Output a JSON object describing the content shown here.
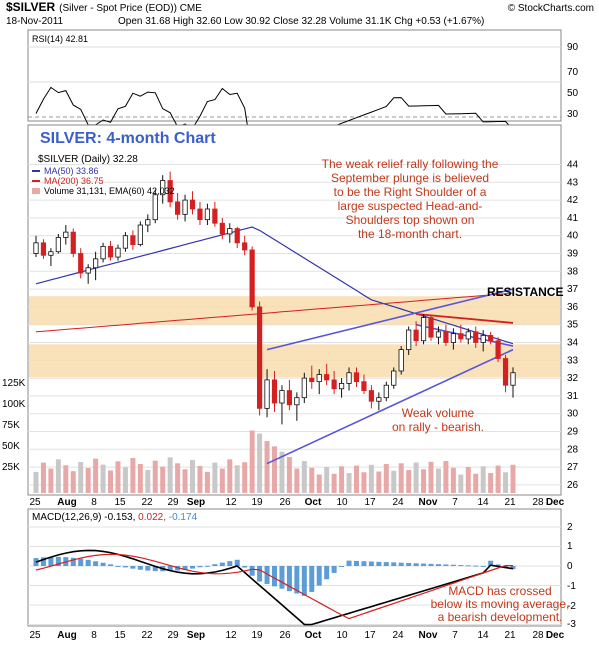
{
  "header": {
    "symbol": "$SILVER",
    "description": "(Silver - Spot Price (EOD)) CME",
    "source": "© StockCharts.com",
    "date": "18-Nov-2011",
    "ohlc": "Open 31.68  High 32.60  Low 30.92  Close 32.28  Volume 31.1K  Chg +0.53 (+1.67%)",
    "up_arrow": "▲"
  },
  "colors": {
    "up": "#111111",
    "down": "#d42020",
    "ma50": "#3333aa",
    "ma200": "#d42020",
    "band": "#f8d9a8",
    "trend": "#5555dd",
    "annotation": "#c0391b",
    "macd_hist": "#3f8bd0",
    "volume": "#e8a8a8"
  },
  "rsi_panel": {
    "legend": "RSI(14) 42.81",
    "levels": [
      "90",
      "70",
      "50",
      "30"
    ]
  },
  "price_panel": {
    "chart_title": "SILVER: 4-month Chart",
    "legend_price": "$SILVER (Daily) 32.28",
    "legend_ma50": "MA(50) 33.86",
    "legend_ma200": "MA(200) 36.75",
    "legend_volume": "Volume 31,131, EMA(60) 42,032",
    "resistance_label": "RESISTANCE",
    "annotation_top": [
      "The weak relief rally following the",
      "September plunge is believed",
      "to be the Right Shoulder of a",
      "large suspected Head-and-",
      "Shoulders top shown on",
      "the 18-month chart."
    ],
    "annotation_volume": [
      "Weak volume",
      "on rally - bearish."
    ],
    "y_ticks": [
      "44",
      "43",
      "42",
      "41",
      "40",
      "39",
      "38",
      "37",
      "36",
      "35",
      "34",
      "33",
      "32",
      "31",
      "30",
      "29",
      "28",
      "27",
      "26"
    ],
    "volume_ticks": [
      "125K",
      "100K",
      "75K",
      "50K",
      "25K"
    ]
  },
  "macd_panel": {
    "legend_name": "MACD(12,26,9)",
    "legend_v1": "-0.153,",
    "legend_v2": "0.022,",
    "legend_v3": "-0.174",
    "annotation": [
      "MACD has crossed",
      "below its moving average,",
      "a bearish development."
    ],
    "y_ticks": [
      "2",
      "1",
      "0",
      "-1",
      "-2",
      "-3"
    ]
  },
  "x_axis": {
    "labels": [
      "25",
      "Aug",
      "8",
      "15",
      "22",
      "29",
      "Sep",
      "12",
      "19",
      "26",
      "Oct",
      "10",
      "17",
      "24",
      "Nov",
      "7",
      "14",
      "21",
      "28",
      "Dec"
    ],
    "bold": [
      "Aug",
      "Sep",
      "Oct",
      "Nov",
      "Dec"
    ]
  },
  "chart_data": {
    "type": "candlestick",
    "title": "SILVER: 4-month Chart",
    "ylim": [
      26,
      44
    ],
    "series": [
      {
        "name": "MA(50)",
        "last": 33.86
      },
      {
        "name": "MA(200)",
        "last": 36.75
      },
      {
        "name": "RSI(14)",
        "last": 42.81
      },
      {
        "name": "MACD(12,26,9)",
        "values": [
          -0.153,
          0.022,
          -0.174
        ]
      }
    ],
    "candles": [
      [
        39.0,
        40.0,
        38.8,
        39.6
      ],
      [
        39.6,
        39.8,
        38.7,
        38.9
      ],
      [
        38.9,
        39.3,
        38.3,
        39.1
      ],
      [
        39.1,
        40.1,
        39.0,
        39.9
      ],
      [
        39.9,
        40.6,
        39.5,
        40.2
      ],
      [
        40.2,
        40.4,
        38.8,
        39.0
      ],
      [
        39.0,
        39.3,
        37.6,
        37.9
      ],
      [
        37.9,
        38.4,
        37.3,
        38.2
      ],
      [
        38.2,
        39.1,
        37.5,
        38.7
      ],
      [
        38.7,
        39.6,
        38.5,
        39.4
      ],
      [
        39.4,
        39.7,
        38.6,
        38.8
      ],
      [
        38.8,
        39.5,
        38.6,
        39.3
      ],
      [
        39.3,
        40.2,
        39.1,
        40.0
      ],
      [
        40.0,
        40.3,
        39.2,
        39.5
      ],
      [
        39.5,
        40.8,
        39.4,
        40.6
      ],
      [
        40.6,
        41.2,
        40.2,
        40.9
      ],
      [
        40.9,
        42.6,
        40.7,
        42.3
      ],
      [
        42.3,
        43.4,
        41.8,
        43.1
      ],
      [
        43.1,
        43.6,
        41.6,
        41.9
      ],
      [
        41.9,
        42.4,
        40.9,
        41.2
      ],
      [
        41.2,
        42.3,
        40.8,
        42.0
      ],
      [
        42.0,
        42.5,
        41.2,
        41.5
      ],
      [
        41.5,
        41.9,
        40.6,
        40.9
      ],
      [
        40.9,
        41.8,
        40.6,
        41.5
      ],
      [
        41.5,
        41.9,
        40.5,
        40.7
      ],
      [
        40.7,
        41.0,
        39.8,
        40.1
      ],
      [
        40.1,
        40.7,
        39.6,
        40.4
      ],
      [
        40.4,
        40.5,
        39.3,
        39.6
      ],
      [
        39.6,
        40.0,
        38.9,
        39.2
      ],
      [
        39.2,
        39.4,
        35.8,
        36.0
      ],
      [
        36.0,
        36.3,
        29.9,
        30.3
      ],
      [
        30.3,
        32.5,
        29.8,
        31.9
      ],
      [
        31.9,
        32.4,
        30.1,
        30.6
      ],
      [
        30.6,
        31.6,
        29.4,
        31.3
      ],
      [
        31.3,
        31.9,
        30.2,
        30.5
      ],
      [
        30.5,
        31.2,
        29.6,
        30.9
      ],
      [
        30.9,
        32.3,
        30.6,
        32.0
      ],
      [
        32.0,
        32.7,
        31.4,
        31.8
      ],
      [
        31.8,
        32.5,
        31.1,
        32.2
      ],
      [
        32.2,
        32.8,
        31.6,
        31.9
      ],
      [
        31.9,
        32.4,
        31.1,
        31.4
      ],
      [
        31.4,
        32.0,
        30.9,
        31.7
      ],
      [
        31.7,
        32.6,
        31.3,
        32.3
      ],
      [
        32.3,
        32.6,
        31.5,
        31.8
      ],
      [
        31.8,
        32.2,
        31.1,
        31.3
      ],
      [
        31.3,
        31.6,
        30.3,
        30.7
      ],
      [
        30.7,
        31.2,
        30.2,
        30.9
      ],
      [
        30.9,
        31.8,
        30.7,
        31.6
      ],
      [
        31.6,
        32.6,
        31.4,
        32.4
      ],
      [
        32.4,
        33.8,
        32.2,
        33.6
      ],
      [
        33.6,
        34.9,
        33.3,
        34.7
      ],
      [
        34.7,
        35.2,
        33.8,
        34.1
      ],
      [
        34.1,
        35.6,
        33.9,
        35.4
      ],
      [
        35.4,
        35.5,
        34.1,
        34.3
      ],
      [
        34.3,
        34.9,
        33.9,
        34.6
      ],
      [
        34.6,
        35.0,
        33.8,
        34.0
      ],
      [
        34.0,
        34.8,
        33.6,
        34.5
      ],
      [
        34.5,
        35.0,
        34.0,
        34.2
      ],
      [
        34.2,
        34.8,
        33.9,
        34.6
      ],
      [
        34.6,
        34.9,
        33.7,
        34.0
      ],
      [
        34.0,
        34.7,
        33.5,
        34.4
      ],
      [
        34.4,
        34.6,
        33.9,
        34.1
      ],
      [
        34.1,
        34.3,
        32.9,
        33.1
      ],
      [
        33.1,
        33.3,
        31.2,
        31.6
      ],
      [
        31.6,
        32.6,
        30.9,
        32.3
      ]
    ]
  }
}
